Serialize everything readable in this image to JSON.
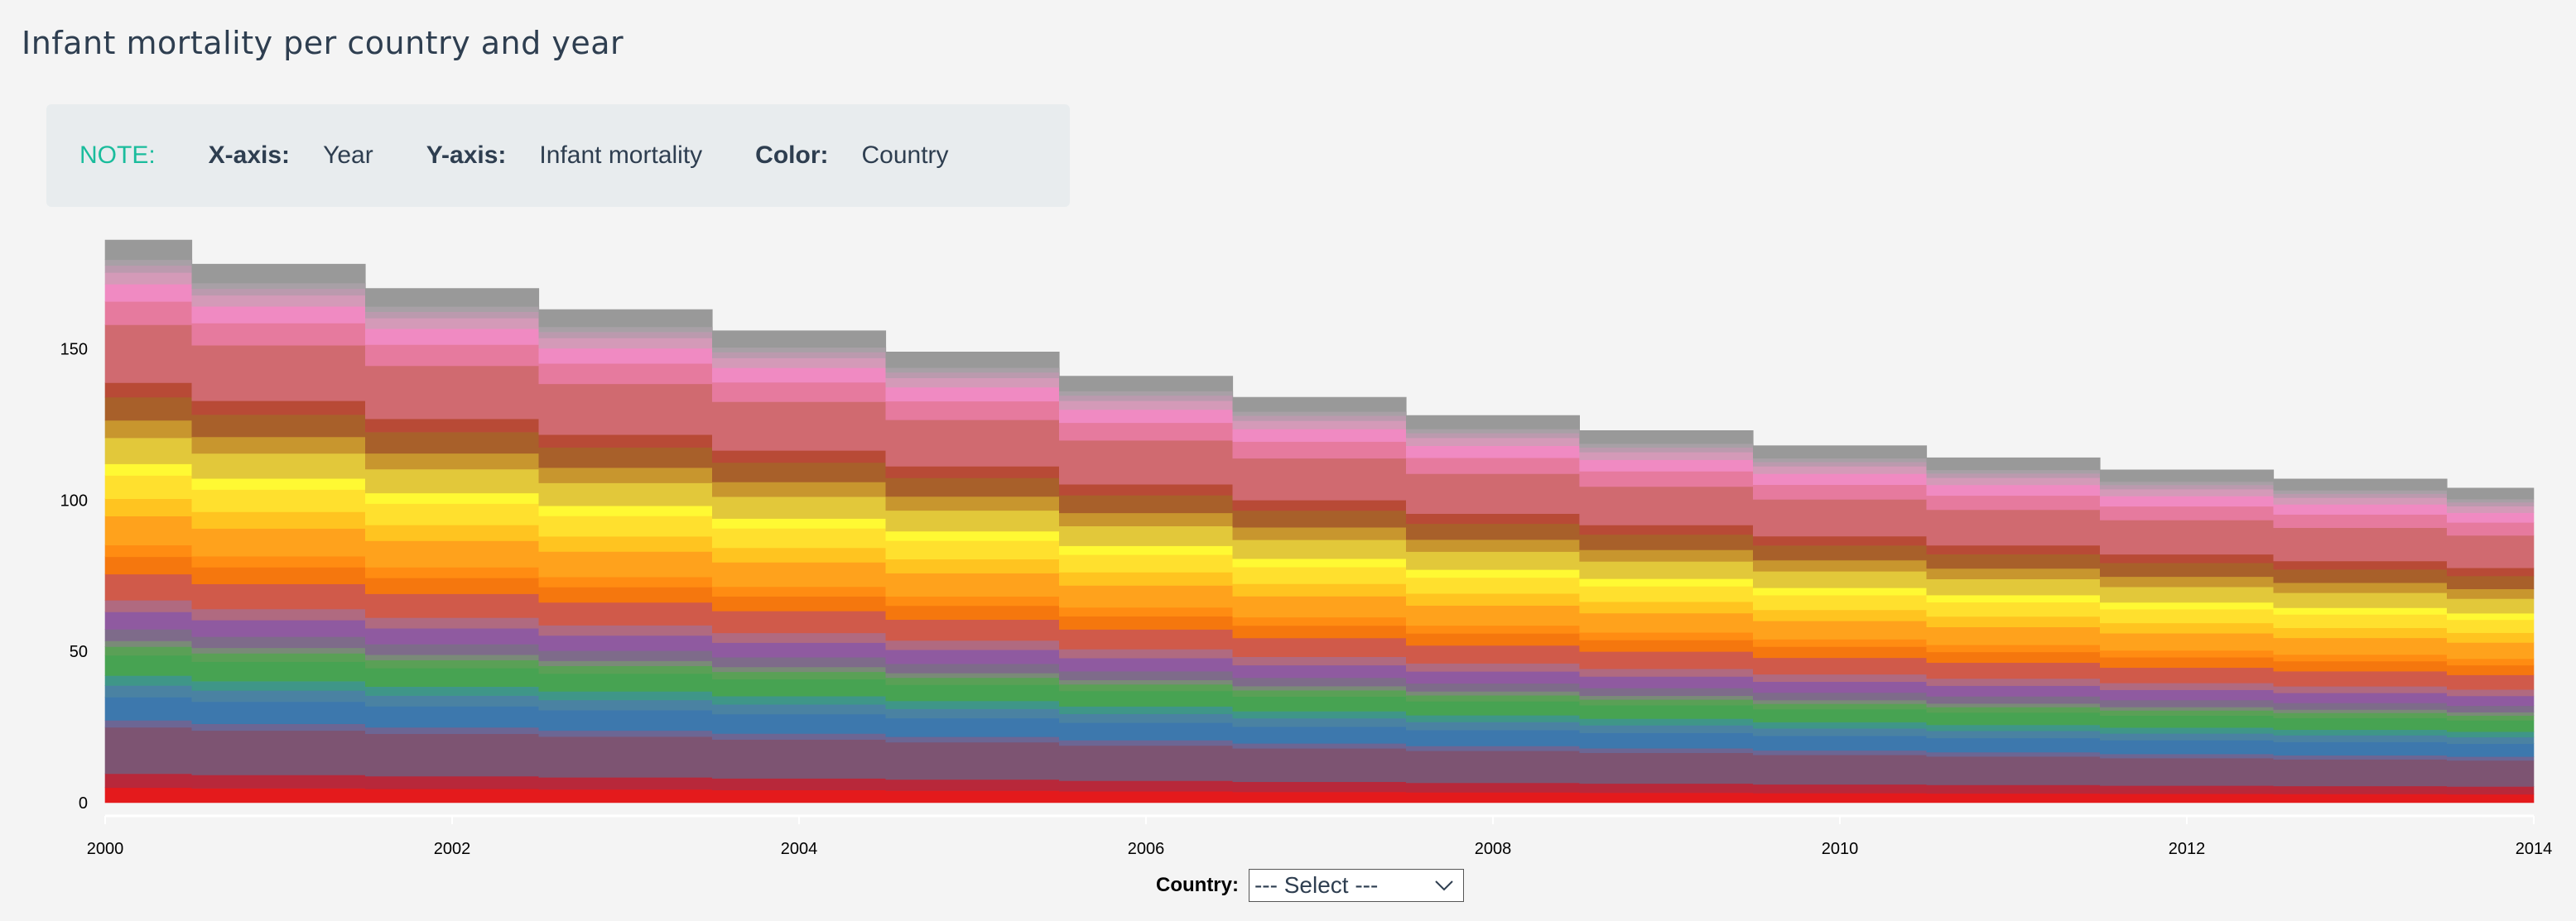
{
  "page": {
    "title": "Infant mortality per country and year"
  },
  "note": {
    "label": "NOTE:",
    "x_key": "X-axis:",
    "x_val": "Year",
    "y_key": "Y-axis:",
    "y_val": "Infant mortality",
    "color_key": "Color:",
    "color_val": "Country"
  },
  "filter": {
    "label": "Country:",
    "selected": "--- Select ---",
    "icon": "chevron-down-icon"
  },
  "chart_data": {
    "type": "area",
    "stacked": true,
    "step": true,
    "x": [
      2000,
      2001,
      2002,
      2003,
      2004,
      2005,
      2006,
      2007,
      2008,
      2009,
      2010,
      2011,
      2012,
      2013,
      2014
    ],
    "xlim": [
      2000,
      2014
    ],
    "ylim": [
      0,
      186
    ],
    "xticks": [
      2000,
      2002,
      2004,
      2006,
      2008,
      2010,
      2012,
      2014
    ],
    "yticks": [
      0,
      50,
      100,
      150
    ],
    "grid": false,
    "legend": "none",
    "totals": [
      186,
      178,
      170,
      163,
      156,
      149,
      141,
      134,
      128,
      123,
      118,
      114,
      110,
      107,
      104
    ],
    "series_shares": [
      {
        "color": "#e41a1c",
        "share": 2.6
      },
      {
        "color": "#b8283a",
        "share": 2.4
      },
      {
        "color": "#7d5472",
        "share": 8.0
      },
      {
        "color": "#6c6694",
        "share": 1.2
      },
      {
        "color": "#3d78ad",
        "share": 4.0
      },
      {
        "color": "#4a82a2",
        "share": 2.0
      },
      {
        "color": "#3f9688",
        "share": 1.7
      },
      {
        "color": "#47a352",
        "share": 3.5
      },
      {
        "color": "#5aa056",
        "share": 1.5
      },
      {
        "color": "#7a8a78",
        "share": 1.0
      },
      {
        "color": "#7e6b8a",
        "share": 2.0
      },
      {
        "color": "#8f5aa0",
        "share": 3.0
      },
      {
        "color": "#b06a80",
        "share": 2.0
      },
      {
        "color": "#d05a4a",
        "share": 4.5
      },
      {
        "color": "#f5770e",
        "share": 3.0
      },
      {
        "color": "#ff8c12",
        "share": 2.0
      },
      {
        "color": "#ffa21c",
        "share": 5.0
      },
      {
        "color": "#ffc420",
        "share": 3.0
      },
      {
        "color": "#ffe02e",
        "share": 4.0
      },
      {
        "color": "#fff933",
        "share": 2.0
      },
      {
        "color": "#e2c83a",
        "share": 4.5
      },
      {
        "color": "#c8962e",
        "share": 3.0
      },
      {
        "color": "#a8602a",
        "share": 4.0
      },
      {
        "color": "#b84a36",
        "share": 2.5
      },
      {
        "color": "#d06a70",
        "share": 10.0
      },
      {
        "color": "#e67a9e",
        "share": 4.0
      },
      {
        "color": "#f08ac2",
        "share": 3.0
      },
      {
        "color": "#d49ab8",
        "share": 2.0
      },
      {
        "color": "#bb9aae",
        "share": 1.2
      },
      {
        "color": "#a8a0a6",
        "share": 1.0
      },
      {
        "color": "#999999",
        "share": 3.4
      }
    ]
  }
}
